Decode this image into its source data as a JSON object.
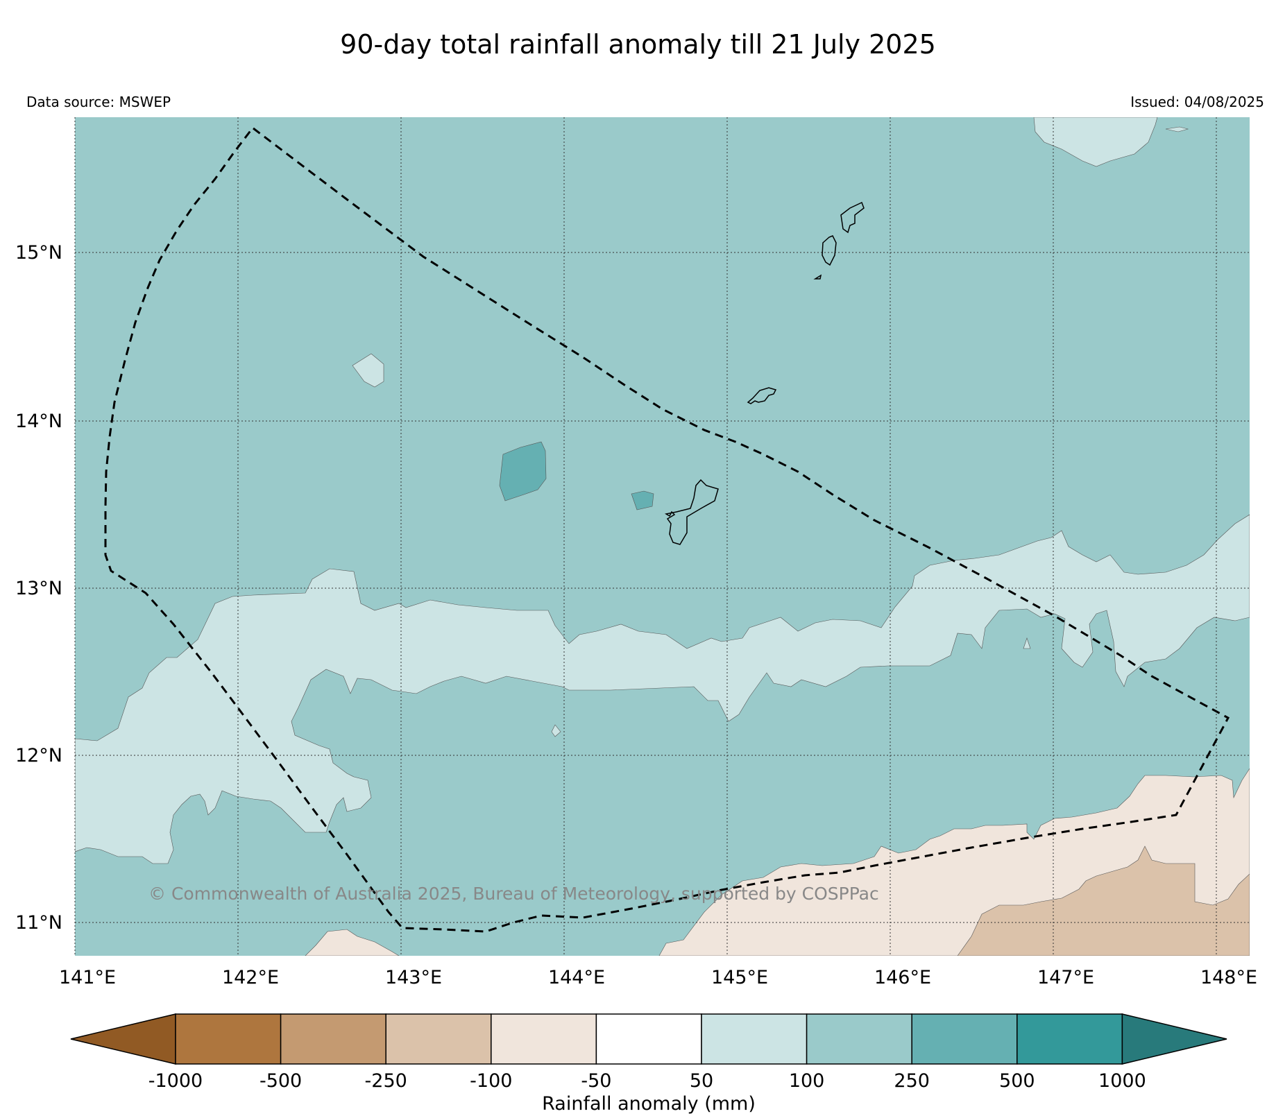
{
  "title": "90-day total rainfall anomaly till 21 July 2025",
  "data_source": "Data source: MSWEP",
  "issued": "Issued: 04/08/2025",
  "copyright": "© Commonwealth of Australia 2025, Bureau of Meteorology, supported by COSPPac",
  "map": {
    "lon_range": [
      141.0,
      148.2
    ],
    "lat_range": [
      10.8,
      15.82
    ],
    "gridlines": true,
    "lat_ticks": [
      {
        "value": 15,
        "label": "15°N"
      },
      {
        "value": 14,
        "label": "14°N"
      },
      {
        "value": 13,
        "label": "13°N"
      },
      {
        "value": 12,
        "label": "12°N"
      },
      {
        "value": 11,
        "label": "11°N"
      }
    ],
    "lon_ticks": [
      {
        "value": 141,
        "label": "141°E"
      },
      {
        "value": 142,
        "label": "142°E"
      },
      {
        "value": 143,
        "label": "143°E"
      },
      {
        "value": 144,
        "label": "144°E"
      },
      {
        "value": 145,
        "label": "145°E"
      },
      {
        "value": 146,
        "label": "146°E"
      },
      {
        "value": 147,
        "label": "147°E"
      },
      {
        "value": 148,
        "label": "148°E"
      }
    ],
    "region_boundary": "dashed"
  },
  "colorbar": {
    "label": "Rainfall anomaly (mm)",
    "tick_labels": [
      "-1000",
      "-500",
      "-250",
      "-100",
      "-50",
      "50",
      "100",
      "250",
      "500",
      "1000"
    ],
    "colors": [
      "#915a24",
      "#ae763e",
      "#c49a71",
      "#dbc2aa",
      "#f0e5dc",
      "#ffffff",
      "#cce4e4",
      "#9acaca",
      "#65b0b2",
      "#33999a",
      "#287a7b"
    ],
    "extend": "both"
  }
}
